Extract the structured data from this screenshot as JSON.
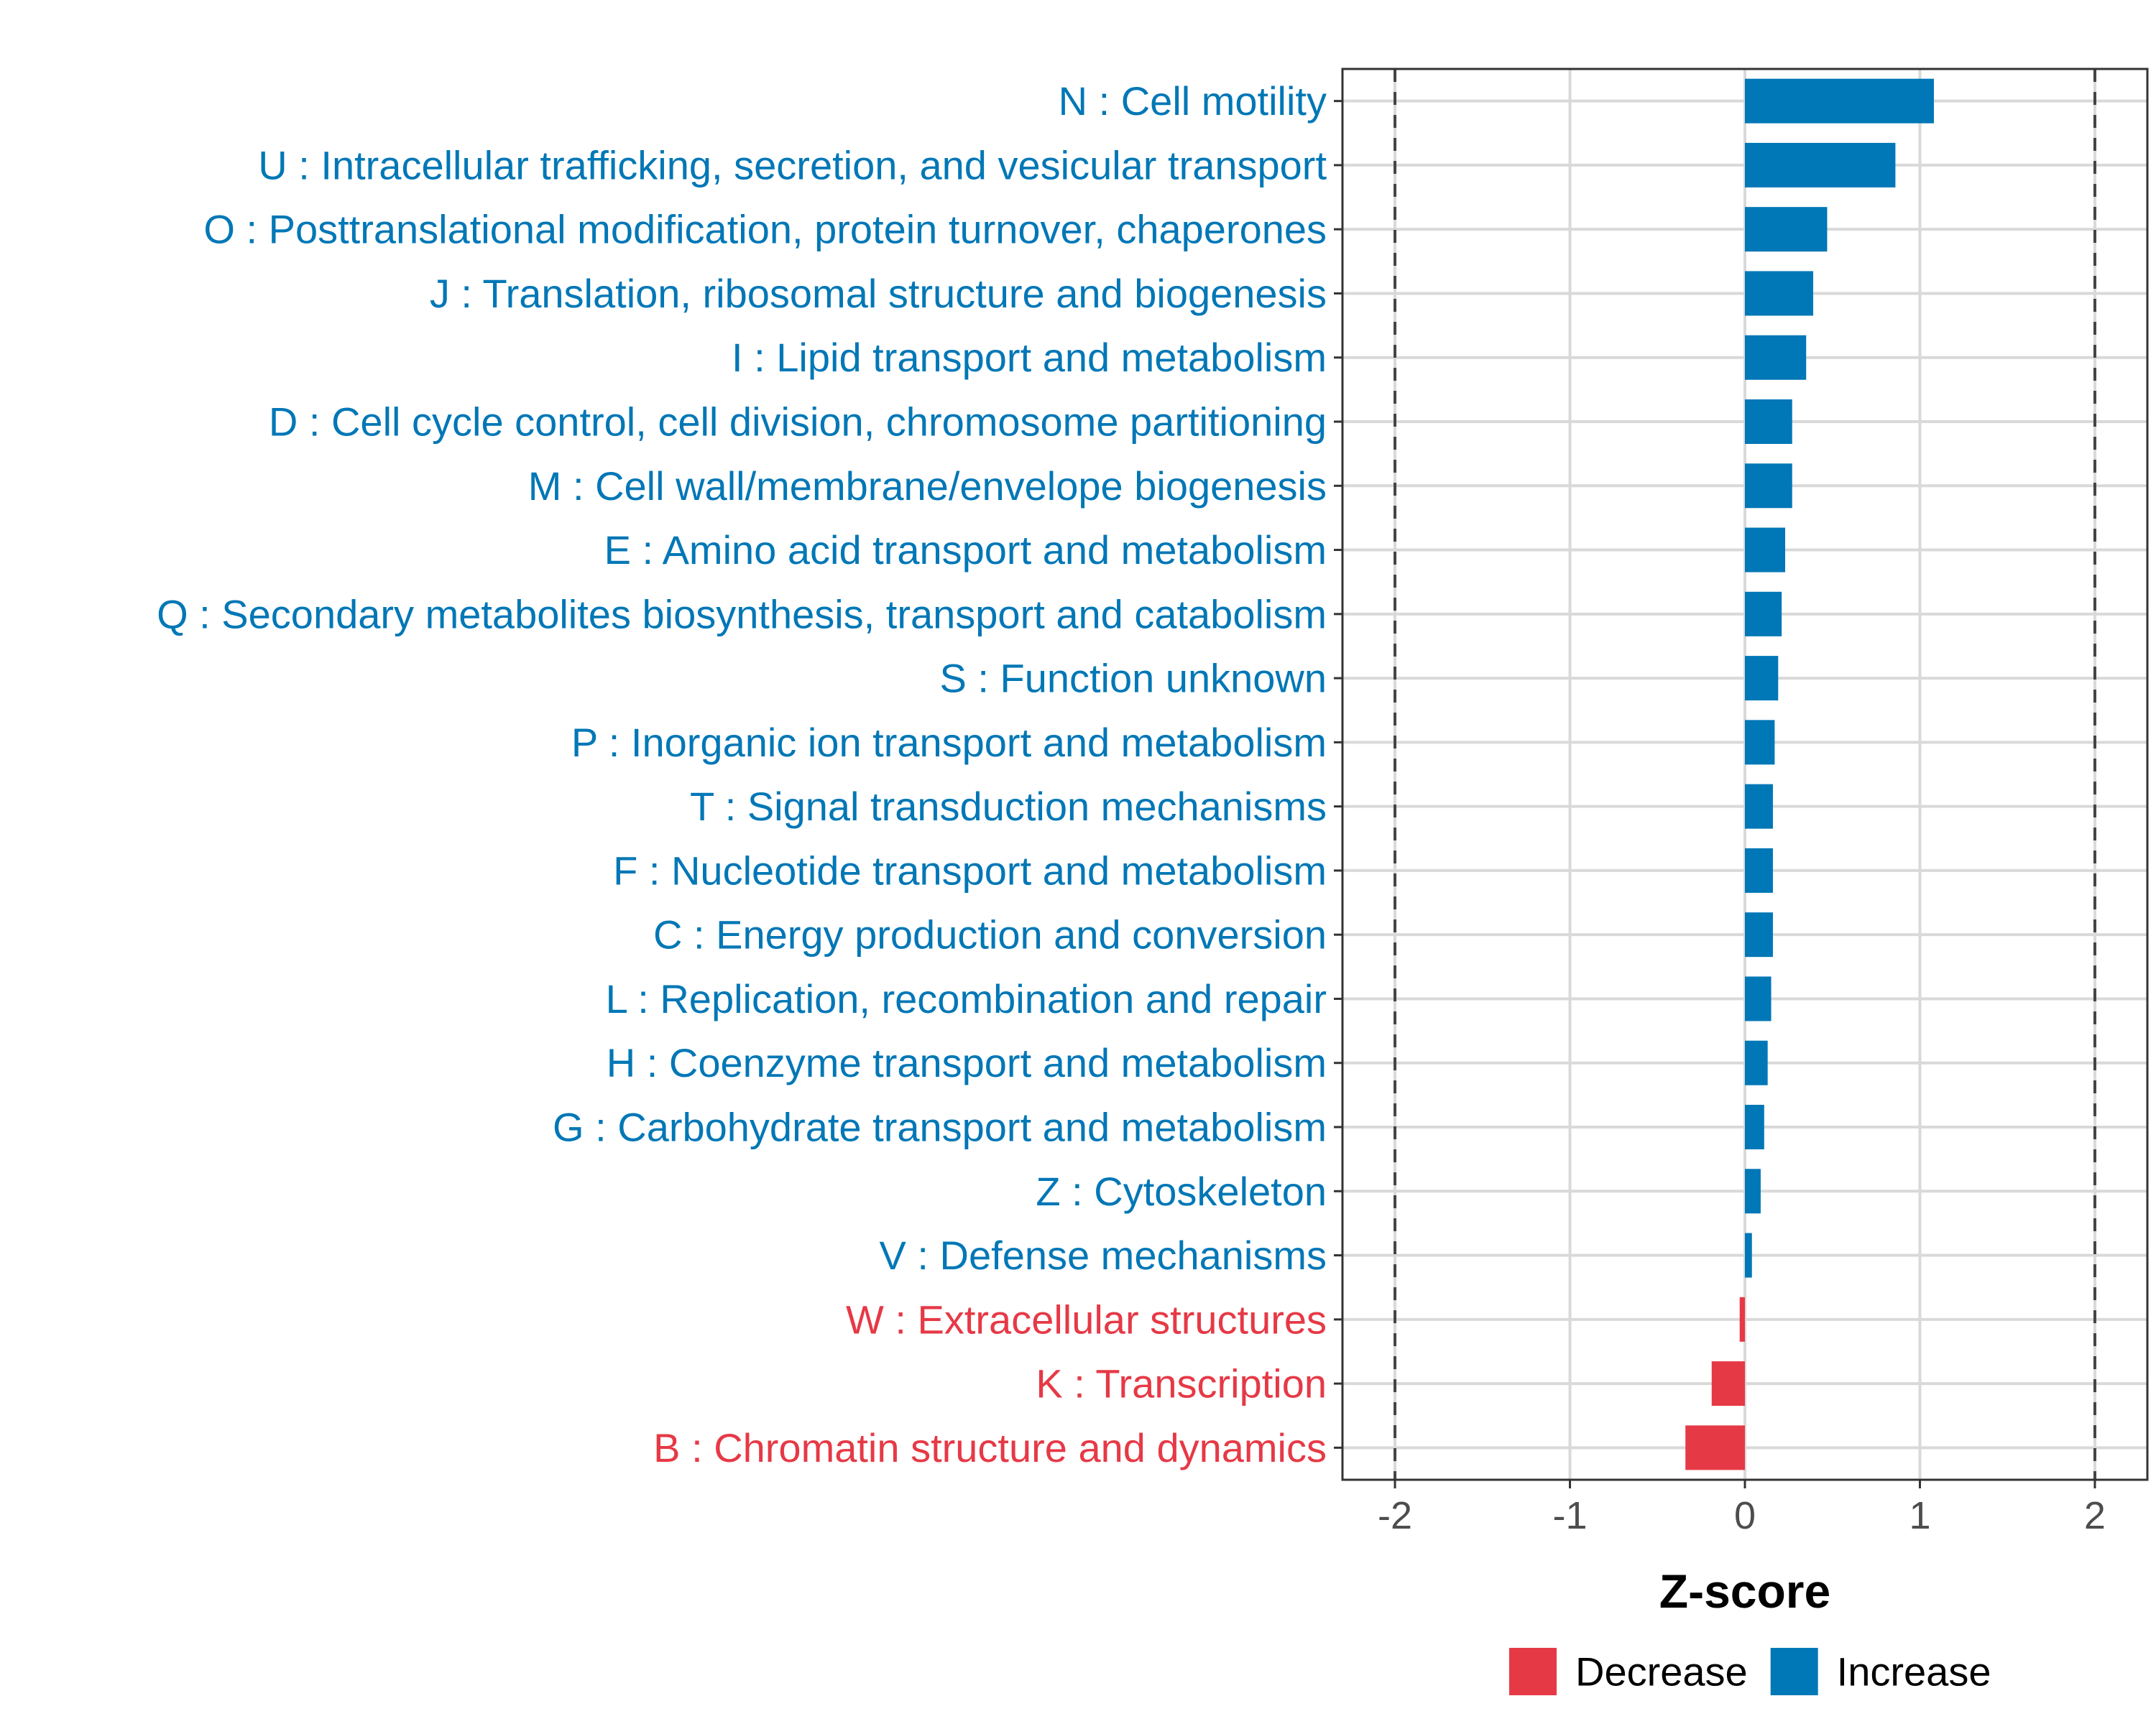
{
  "chart_data": {
    "type": "bar",
    "orientation": "horizontal",
    "title": "",
    "xlabel": "Z-score",
    "ylabel": "",
    "xlim": [
      -2.3,
      2.3
    ],
    "xticks": [
      -2,
      -1,
      0,
      1,
      2
    ],
    "xtick_labels": [
      "-2",
      "-1",
      "0",
      "1",
      "2"
    ],
    "reference_lines": [
      -2,
      2
    ],
    "grid": true,
    "legend_position": "bottom",
    "legend": [
      {
        "label": "Decrease",
        "color": "#e63946"
      },
      {
        "label": "Increase",
        "color": "#0077b6"
      }
    ],
    "categories": [
      "N : Cell motility",
      "U : Intracellular trafficking, secretion, and vesicular transport",
      "O : Posttranslational modification, protein turnover, chaperones",
      "J : Translation, ribosomal structure and biogenesis",
      "I : Lipid transport and metabolism",
      "D : Cell cycle control, cell division, chromosome partitioning",
      "M : Cell wall/membrane/envelope biogenesis",
      "E : Amino acid transport and metabolism",
      "Q : Secondary metabolites biosynthesis, transport and catabolism",
      "S : Function unknown",
      "P : Inorganic ion transport and metabolism",
      "T : Signal transduction mechanisms",
      "F : Nucleotide transport and metabolism",
      "C : Energy production and conversion",
      "L : Replication, recombination and repair",
      "H : Coenzyme transport and metabolism",
      "G : Carbohydrate transport and metabolism",
      "Z : Cytoskeleton",
      "V : Defense mechanisms",
      "W : Extracellular structures",
      "K : Transcription",
      "B : Chromatin structure and dynamics"
    ],
    "values": [
      1.08,
      0.86,
      0.47,
      0.39,
      0.35,
      0.27,
      0.27,
      0.23,
      0.21,
      0.19,
      0.17,
      0.16,
      0.16,
      0.16,
      0.15,
      0.13,
      0.11,
      0.09,
      0.04,
      -0.03,
      -0.19,
      -0.34
    ],
    "colors": {
      "increase": "#0077b6",
      "decrease": "#e63946"
    }
  }
}
